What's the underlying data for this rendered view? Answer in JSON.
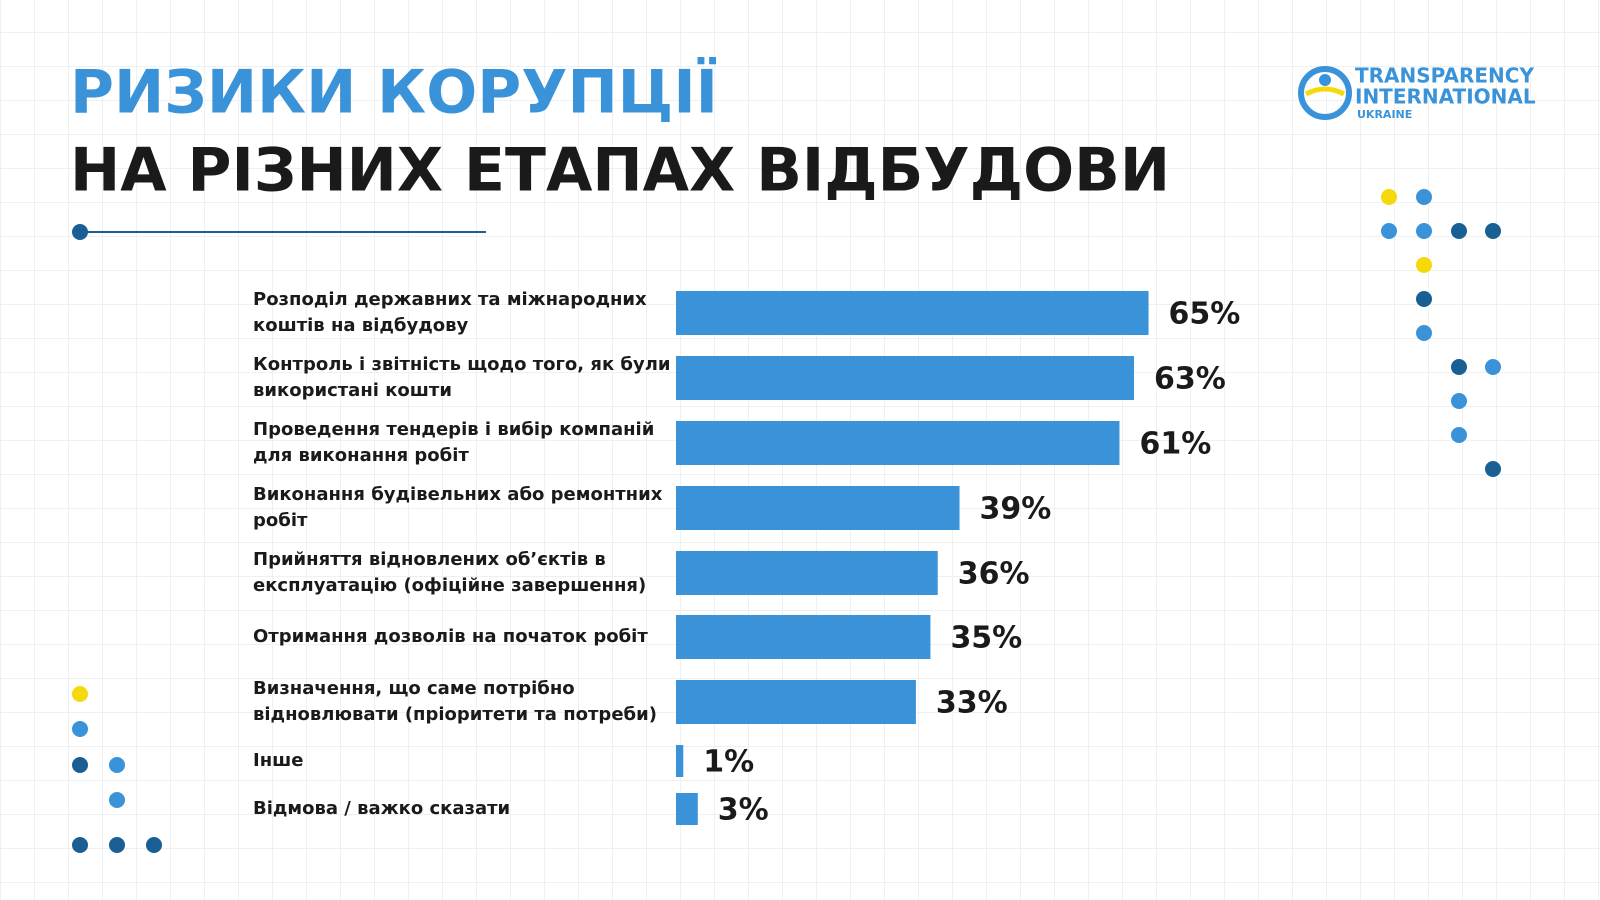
{
  "chart_data": {
    "type": "bar",
    "title": "РИЗИКИ КОРУПЦІЇ",
    "subtitle": "НА РІЗНИХ ЕТАПАХ ВІДБУДОВИ",
    "categories": [
      "Розподіл державних та міжнародних коштів на відбудову",
      "Контроль і звітність щодо того, як були використані кошти",
      "Проведення тендерів і вибір компаній для виконання робіт",
      "Виконання будівельних або ремонтних робіт",
      "Прийняття відновлених об’єктів в експлуатацію (офіційне завершення)",
      "Отримання дозволів на початок робіт",
      "Визначення, що саме потрібно відновлювати (пріоритети та потреби)",
      "Інше",
      "Відмова / важко сказати"
    ],
    "values": [
      65,
      63,
      61,
      39,
      36,
      35,
      33,
      1,
      3
    ],
    "value_labels": [
      "65%",
      "63%",
      "61%",
      "39%",
      "36%",
      "35%",
      "33%",
      "1%",
      "3%"
    ],
    "color": "#3a93d8"
  },
  "logo": {
    "line1": "TRANSPARENCY",
    "line2": "INTERNATIONAL",
    "line3": "UKRAINE"
  }
}
